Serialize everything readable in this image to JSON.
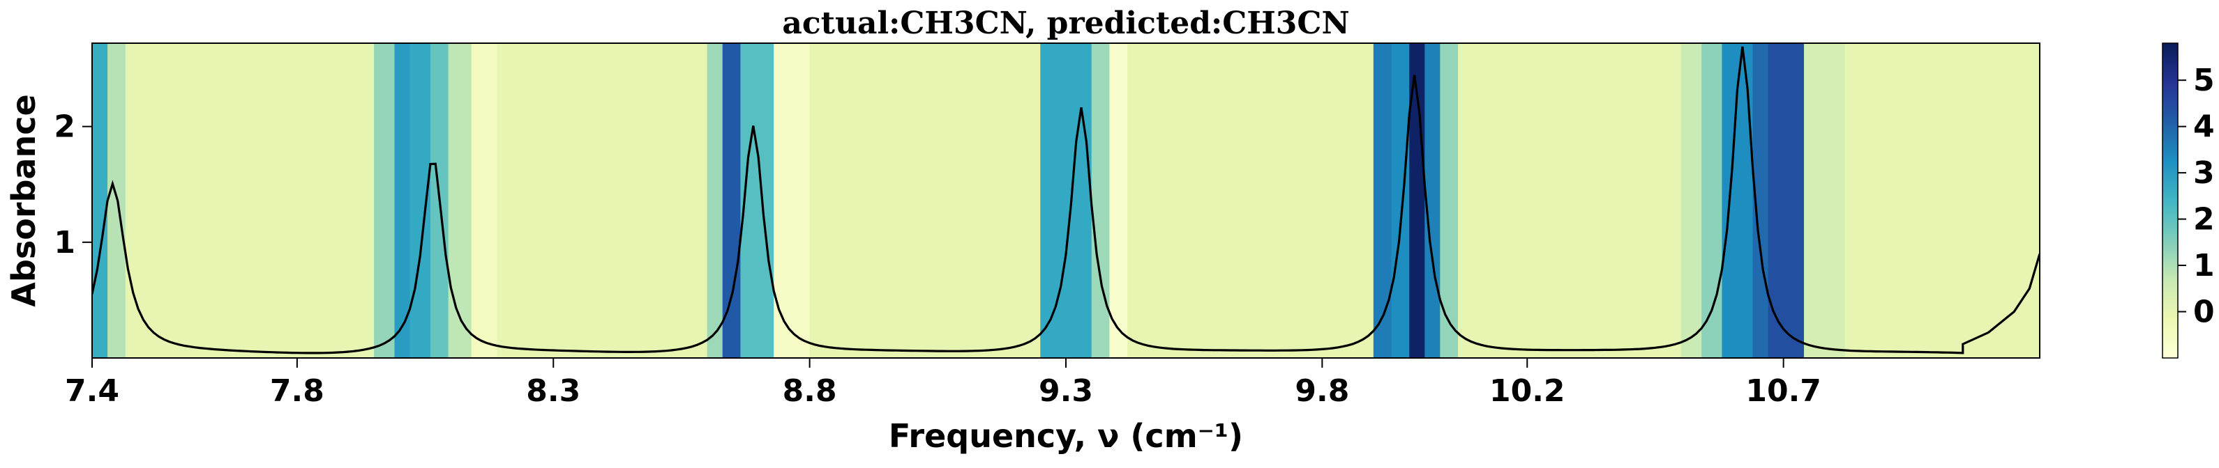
{
  "chart_data": {
    "type": "line",
    "title": "actual:CH3CN, predicted:CH3CN",
    "xlabel": "Frequency, ν (cm⁻¹)",
    "ylabel": "Absorbance",
    "xlim": [
      7.4,
      11.2
    ],
    "ylim": [
      0.0,
      2.72
    ],
    "x_ticks": [
      "7.4",
      "7.8",
      "8.3",
      "8.8",
      "9.3",
      "9.8",
      "10.2",
      "10.7"
    ],
    "y_ticks": [
      "1",
      "2"
    ],
    "colorbar_ticks": [
      "0",
      "1",
      "2",
      "3",
      "4",
      "5"
    ],
    "colorbar_range": [
      -1.0,
      5.8
    ],
    "grid": false,
    "line_color": "#000000",
    "colormap": "YlGnBu",
    "peaks": [
      {
        "center": 7.44,
        "height": 1.48,
        "width": 0.03
      },
      {
        "center": 8.065,
        "height": 1.72,
        "width": 0.025
      },
      {
        "center": 8.69,
        "height": 1.99,
        "width": 0.025
      },
      {
        "center": 9.33,
        "height": 2.15,
        "width": 0.025
      },
      {
        "center": 9.98,
        "height": 2.43,
        "width": 0.025
      },
      {
        "center": 10.62,
        "height": 2.68,
        "width": 0.025
      }
    ],
    "line_tail": {
      "x": [
        11.05,
        11.1,
        11.15,
        11.18,
        11.2
      ],
      "y": [
        0.12,
        0.22,
        0.4,
        0.6,
        0.9
      ]
    },
    "heatmap_bands": [
      {
        "from": 7.4,
        "to": 7.43,
        "value": 2.6
      },
      {
        "from": 7.43,
        "to": 7.465,
        "value": 0.9
      },
      {
        "from": 7.465,
        "to": 7.95,
        "value": 0.0
      },
      {
        "from": 7.95,
        "to": 7.99,
        "value": 1.3
      },
      {
        "from": 7.99,
        "to": 8.02,
        "value": 3.0
      },
      {
        "from": 8.02,
        "to": 8.06,
        "value": 2.7
      },
      {
        "from": 8.06,
        "to": 8.095,
        "value": 1.9
      },
      {
        "from": 8.095,
        "to": 8.14,
        "value": 0.8
      },
      {
        "from": 8.14,
        "to": 8.19,
        "value": -0.5
      },
      {
        "from": 8.19,
        "to": 8.6,
        "value": 0.0
      },
      {
        "from": 8.6,
        "to": 8.63,
        "value": 1.2
      },
      {
        "from": 8.63,
        "to": 8.665,
        "value": 4.2
      },
      {
        "from": 8.665,
        "to": 8.73,
        "value": 2.1
      },
      {
        "from": 8.73,
        "to": 8.8,
        "value": -0.6
      },
      {
        "from": 8.8,
        "to": 9.25,
        "value": 0.0
      },
      {
        "from": 9.25,
        "to": 9.35,
        "value": 2.7
      },
      {
        "from": 9.35,
        "to": 9.385,
        "value": 1.2
      },
      {
        "from": 9.385,
        "to": 9.42,
        "value": -0.7
      },
      {
        "from": 9.42,
        "to": 9.9,
        "value": 0.0
      },
      {
        "from": 9.9,
        "to": 9.935,
        "value": 3.6
      },
      {
        "from": 9.935,
        "to": 9.97,
        "value": 3.3
      },
      {
        "from": 9.97,
        "to": 10.0,
        "value": 5.6
      },
      {
        "from": 10.0,
        "to": 10.03,
        "value": 3.5
      },
      {
        "from": 10.03,
        "to": 10.065,
        "value": 1.3
      },
      {
        "from": 10.065,
        "to": 10.5,
        "value": 0.0
      },
      {
        "from": 10.5,
        "to": 10.54,
        "value": 0.6
      },
      {
        "from": 10.54,
        "to": 10.58,
        "value": 1.4
      },
      {
        "from": 10.58,
        "to": 10.64,
        "value": 3.3
      },
      {
        "from": 10.64,
        "to": 10.67,
        "value": 3.9
      },
      {
        "from": 10.67,
        "to": 10.74,
        "value": 4.4
      },
      {
        "from": 10.74,
        "to": 10.82,
        "value": 0.4
      },
      {
        "from": 10.82,
        "to": 11.2,
        "value": 0.0
      }
    ]
  }
}
